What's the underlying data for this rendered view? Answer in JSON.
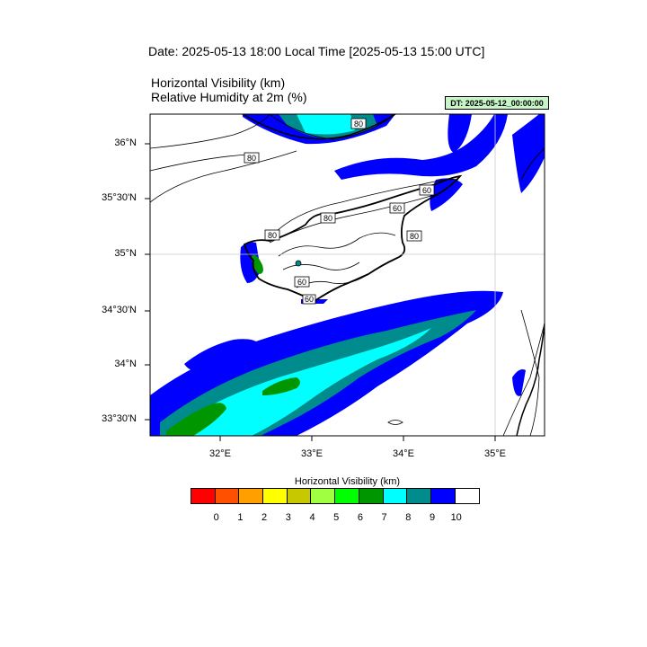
{
  "title": "Date: 2025-05-13  18:00 Local Time [2025-05-13  15:00 UTC]",
  "variables": [
    "Horizontal Visibility   (km)",
    "Relative Humidity at 2m   (%)"
  ],
  "dt_badge": "DT: 2025-05-12_00:00:00",
  "lat_labels": [
    "36°N",
    "35°30'N",
    "35°N",
    "34°30'N",
    "34°N",
    "33°30'N"
  ],
  "lon_labels": [
    "32°E",
    "33°E",
    "34°E",
    "35°E"
  ],
  "contour_labels": [
    "80",
    "80",
    "60",
    "80",
    "60",
    "80",
    "80",
    "60",
    "60"
  ],
  "legend": {
    "title": "Horizontal Visibility  (km)",
    "ticks": [
      "0",
      "1",
      "2",
      "3",
      "4",
      "5",
      "6",
      "7",
      "8",
      "9",
      "10"
    ],
    "colors": [
      "#ff0000",
      "#ff5000",
      "#ffa000",
      "#ffff00",
      "#c8c800",
      "#a0ff40",
      "#00ff00",
      "#009600",
      "#00ffff",
      "#008c8c",
      "#0000ff",
      "#ffffff"
    ]
  }
}
